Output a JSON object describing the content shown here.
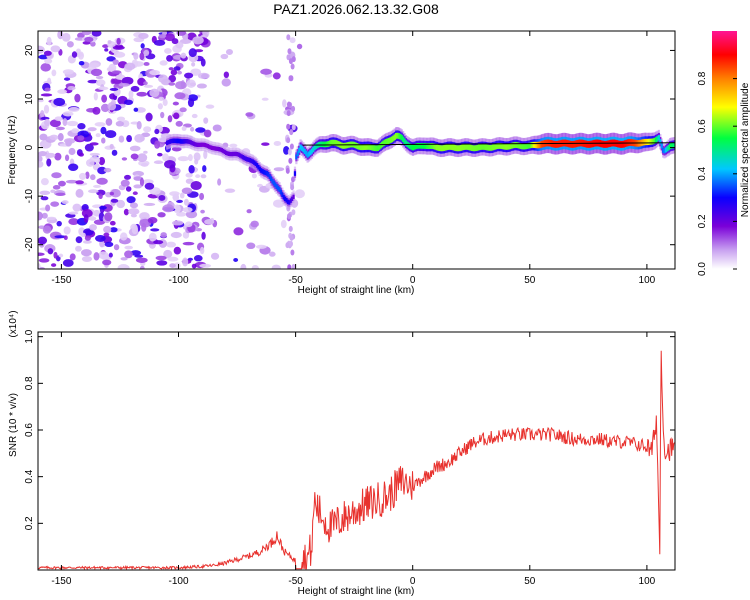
{
  "figure": {
    "title": "PAZ1.2026.062.13.32.G08"
  },
  "chart_data": [
    {
      "type": "heatmap",
      "xlabel": "Height of straight line (km)",
      "ylabel": "Frequency (Hz)",
      "xlim": [
        -160,
        112
      ],
      "ylim": [
        -25,
        24
      ],
      "xticks": [
        -150,
        -100,
        -50,
        0,
        50,
        100
      ],
      "yticks": [
        -20,
        -10,
        0,
        10,
        20
      ],
      "colorbar": {
        "label": "Normalized spectral amplitude",
        "range": [
          0,
          1
        ],
        "ticks": [
          "0.0",
          "0.2",
          "0.4",
          "0.6",
          "0.8"
        ],
        "colors": [
          "#ffffff",
          "#c8a0f0",
          "#7a00d8",
          "#0a00ff",
          "#00c8ff",
          "#00ff40",
          "#ffff00",
          "#ff8000",
          "#ff0000",
          "#ff1493"
        ]
      },
      "ridge": {
        "x": [
          -105,
          -100,
          -95,
          -90,
          -85,
          -80,
          -75,
          -72,
          -70,
          -67,
          -65,
          -62,
          -60,
          -57,
          -55,
          -53,
          -51,
          -50,
          -48,
          -45,
          -42,
          -40,
          -35,
          -30,
          -25,
          -20,
          -15,
          -10,
          -7,
          -5,
          -3,
          0,
          5,
          10,
          20,
          30,
          40,
          45,
          50,
          55,
          60,
          70,
          80,
          90,
          95,
          100,
          103,
          105,
          107,
          110,
          112
        ],
        "freq": [
          1,
          1.5,
          1,
          0.5,
          0,
          -1,
          -1.5,
          -2,
          -2.5,
          -3.5,
          -4.5,
          -5.5,
          -7,
          -8.5,
          -10.5,
          -11.5,
          -10,
          -2,
          0,
          -1.5,
          0,
          0.5,
          1,
          0.5,
          0.5,
          0,
          0,
          1.5,
          2.5,
          2,
          1,
          0,
          0.5,
          0,
          0,
          0,
          0.3,
          0.4,
          0.3,
          0.8,
          0.8,
          0.8,
          0.8,
          0.8,
          1,
          1,
          1.5,
          2,
          -1,
          0.5,
          0.5
        ],
        "amplitude": [
          0.25,
          0.3,
          0.22,
          0.18,
          0.18,
          0.2,
          0.2,
          0.25,
          0.25,
          0.28,
          0.3,
          0.32,
          0.35,
          0.35,
          0.3,
          0.28,
          0.2,
          0.35,
          0.42,
          0.4,
          0.45,
          0.5,
          0.6,
          0.62,
          0.6,
          0.62,
          0.58,
          0.6,
          0.62,
          0.55,
          0.5,
          0.55,
          0.55,
          0.62,
          0.62,
          0.6,
          0.62,
          0.6,
          0.58,
          0.85,
          0.88,
          0.88,
          0.9,
          0.9,
          0.85,
          0.7,
          0.6,
          0.45,
          0.35,
          0.55,
          0.5
        ]
      },
      "reference_line": {
        "from": [
          -47,
          0.5
        ],
        "to": [
          112,
          1
        ]
      },
      "noise_region": {
        "x": [
          -160,
          -48
        ],
        "density": "high for x < -88, sparse from -88 to -48"
      }
    },
    {
      "type": "line",
      "xlabel": "Height of straight line (km)",
      "ylabel": "SNR (10 * v/v)",
      "yscale_label": "(x10⁴)",
      "xlim": [
        -160,
        112
      ],
      "ylim": [
        0,
        1.02
      ],
      "xticks": [
        -150,
        -100,
        -50,
        0,
        50,
        100
      ],
      "yticks": [
        0.2,
        0.4,
        0.6,
        0.8,
        1.0
      ],
      "ytick_labels": [
        "0.2",
        "0.4",
        "0.6",
        "0.8",
        "1.0"
      ],
      "color": "#e8322e",
      "series": {
        "name": "SNR",
        "x": [
          -160,
          -140,
          -120,
          -100,
          -90,
          -85,
          -80,
          -75,
          -70,
          -65,
          -60,
          -58,
          -55,
          -50,
          -45,
          -43,
          -42,
          -40,
          -38,
          -35,
          -30,
          -25,
          -20,
          -15,
          -10,
          -5,
          0,
          5,
          10,
          15,
          20,
          25,
          30,
          35,
          40,
          45,
          50,
          55,
          60,
          65,
          70,
          75,
          80,
          85,
          90,
          95,
          100,
          102,
          104,
          105,
          105.5,
          106,
          107,
          108,
          110,
          112
        ],
        "y": [
          0.01,
          0.01,
          0.01,
          0.01,
          0.015,
          0.02,
          0.03,
          0.045,
          0.06,
          0.08,
          0.12,
          0.15,
          0.08,
          0.04,
          0.05,
          0.1,
          0.3,
          0.25,
          0.22,
          0.18,
          0.22,
          0.25,
          0.28,
          0.3,
          0.32,
          0.38,
          0.36,
          0.4,
          0.44,
          0.46,
          0.5,
          0.54,
          0.56,
          0.57,
          0.58,
          0.58,
          0.58,
          0.58,
          0.58,
          0.57,
          0.56,
          0.56,
          0.56,
          0.55,
          0.55,
          0.54,
          0.53,
          0.5,
          0.65,
          0.3,
          0.05,
          1.0,
          0.6,
          0.5,
          0.52,
          0.52
        ]
      }
    }
  ]
}
